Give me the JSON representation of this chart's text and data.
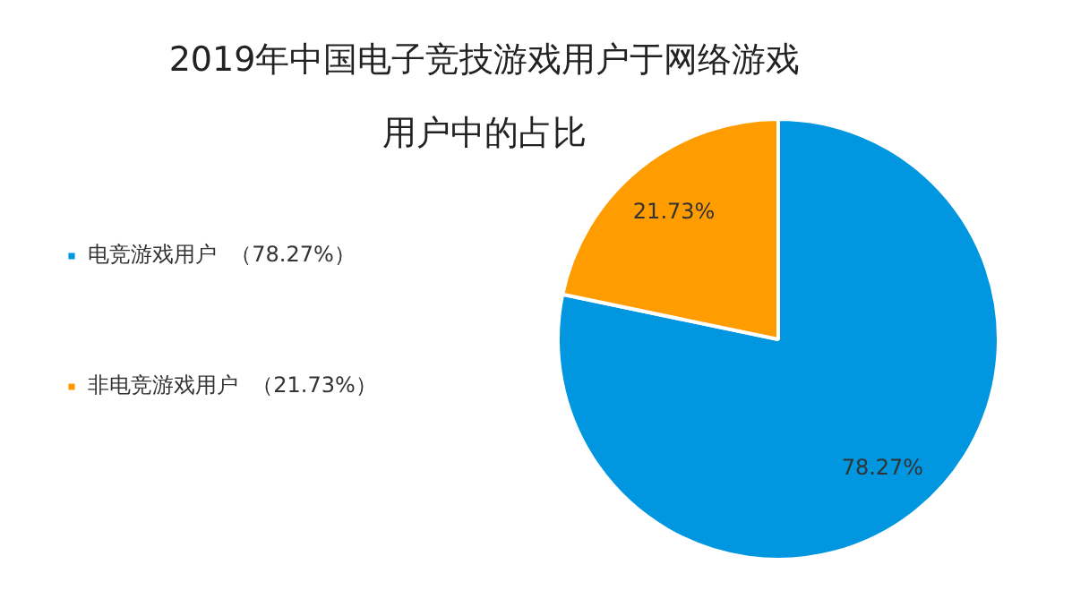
{
  "chart_data": {
    "type": "pie",
    "title": "2019年中国电子竞技游戏用户于网络游戏用户中的占比",
    "categories": [
      "电竞游戏用户  （78.27%）",
      "非电竞游戏用户  （21.73%）"
    ],
    "values": [
      78.27,
      21.73
    ],
    "value_labels": [
      "78.27%",
      "21.73%"
    ],
    "colors": [
      "#0096e0",
      "#ff9c00"
    ],
    "legend": "left"
  }
}
